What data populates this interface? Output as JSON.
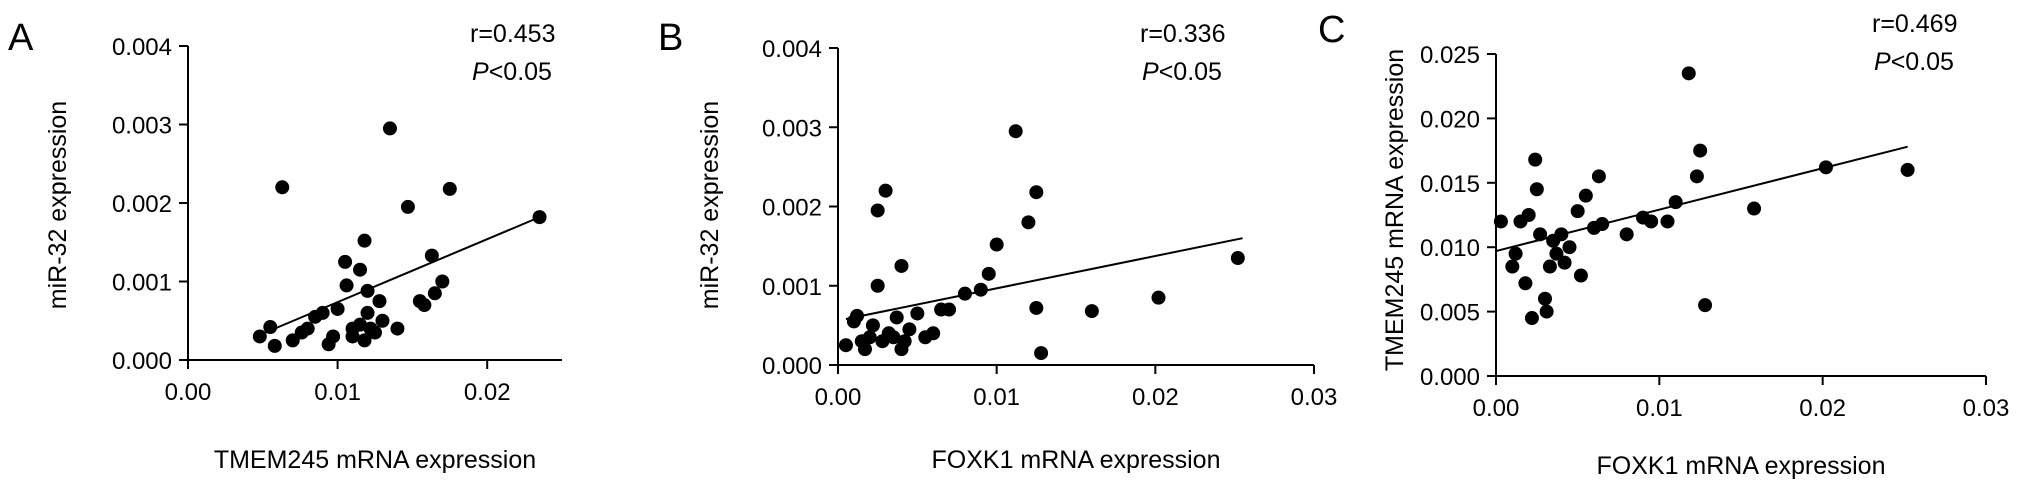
{
  "chart_data": [
    {
      "type": "scatter",
      "panel_label": "A",
      "xlabel": "TMEM245 mRNA expression",
      "ylabel": "miR-32 expression",
      "xlim": [
        0.0,
        0.025
      ],
      "ylim": [
        0.0,
        0.004
      ],
      "xticks": [
        0.0,
        0.01,
        0.02
      ],
      "xtick_labels": [
        "0.00",
        "0.01",
        "0.02"
      ],
      "yticks": [
        0.0,
        0.001,
        0.002,
        0.003,
        0.004
      ],
      "ytick_labels": [
        "0.000",
        "0.001",
        "0.002",
        "0.003",
        "0.004"
      ],
      "stats": {
        "r": "r=0.453",
        "p_letter": "P",
        "p_rest": "<0.05"
      },
      "fit_line": {
        "x": [
          0.0048,
          0.0235
        ],
        "y": [
          0.00032,
          0.00182
        ]
      },
      "points": [
        {
          "x": 0.0048,
          "y": 0.0003
        },
        {
          "x": 0.0055,
          "y": 0.00042
        },
        {
          "x": 0.0058,
          "y": 0.00018
        },
        {
          "x": 0.0063,
          "y": 0.0022
        },
        {
          "x": 0.007,
          "y": 0.00025
        },
        {
          "x": 0.0076,
          "y": 0.00035
        },
        {
          "x": 0.008,
          "y": 0.0004
        },
        {
          "x": 0.0085,
          "y": 0.00055
        },
        {
          "x": 0.009,
          "y": 0.0006
        },
        {
          "x": 0.0094,
          "y": 0.0002
        },
        {
          "x": 0.0097,
          "y": 0.0003
        },
        {
          "x": 0.01,
          "y": 0.00065
        },
        {
          "x": 0.0105,
          "y": 0.00125
        },
        {
          "x": 0.0106,
          "y": 0.00095
        },
        {
          "x": 0.011,
          "y": 0.0004
        },
        {
          "x": 0.011,
          "y": 0.0003
        },
        {
          "x": 0.0115,
          "y": 0.00115
        },
        {
          "x": 0.0115,
          "y": 0.00045
        },
        {
          "x": 0.0118,
          "y": 0.00025
        },
        {
          "x": 0.0118,
          "y": 0.00152
        },
        {
          "x": 0.012,
          "y": 0.00088
        },
        {
          "x": 0.012,
          "y": 0.0006
        },
        {
          "x": 0.0122,
          "y": 0.0004
        },
        {
          "x": 0.0125,
          "y": 0.00035
        },
        {
          "x": 0.0128,
          "y": 0.00075
        },
        {
          "x": 0.013,
          "y": 0.0005
        },
        {
          "x": 0.0135,
          "y": 0.00295
        },
        {
          "x": 0.014,
          "y": 0.0004
        },
        {
          "x": 0.0147,
          "y": 0.00195
        },
        {
          "x": 0.0155,
          "y": 0.00075
        },
        {
          "x": 0.0158,
          "y": 0.0007
        },
        {
          "x": 0.0163,
          "y": 0.00133
        },
        {
          "x": 0.0165,
          "y": 0.00085
        },
        {
          "x": 0.017,
          "y": 0.001
        },
        {
          "x": 0.0175,
          "y": 0.00218
        },
        {
          "x": 0.0235,
          "y": 0.00182
        }
      ]
    },
    {
      "type": "scatter",
      "panel_label": "B",
      "xlabel": "FOXK1 mRNA expression",
      "ylabel": "miR-32 expression",
      "xlim": [
        0.0,
        0.03
      ],
      "ylim": [
        0.0,
        0.004
      ],
      "xticks": [
        0.0,
        0.01,
        0.02,
        0.03
      ],
      "xtick_labels": [
        "0.00",
        "0.01",
        "0.02",
        "0.03"
      ],
      "yticks": [
        0.0,
        0.001,
        0.002,
        0.003,
        0.004
      ],
      "ytick_labels": [
        "0.000",
        "0.001",
        "0.002",
        "0.003",
        "0.004"
      ],
      "stats": {
        "r": "r=0.336",
        "p_letter": "P",
        "p_rest": "<0.05"
      },
      "fit_line": {
        "x": [
          0.0005,
          0.0255
        ],
        "y": [
          0.00058,
          0.0016
        ]
      },
      "points": [
        {
          "x": 0.0005,
          "y": 0.00025
        },
        {
          "x": 0.001,
          "y": 0.00055
        },
        {
          "x": 0.0012,
          "y": 0.00062
        },
        {
          "x": 0.0015,
          "y": 0.0003
        },
        {
          "x": 0.0017,
          "y": 0.0002
        },
        {
          "x": 0.002,
          "y": 0.00035
        },
        {
          "x": 0.0022,
          "y": 0.0005
        },
        {
          "x": 0.0025,
          "y": 0.001
        },
        {
          "x": 0.0025,
          "y": 0.00195
        },
        {
          "x": 0.0028,
          "y": 0.0003
        },
        {
          "x": 0.003,
          "y": 0.0022
        },
        {
          "x": 0.0032,
          "y": 0.0004
        },
        {
          "x": 0.0035,
          "y": 0.00035
        },
        {
          "x": 0.0037,
          "y": 0.0006
        },
        {
          "x": 0.004,
          "y": 0.00125
        },
        {
          "x": 0.004,
          "y": 0.0002
        },
        {
          "x": 0.0042,
          "y": 0.0003
        },
        {
          "x": 0.0045,
          "y": 0.00045
        },
        {
          "x": 0.005,
          "y": 0.00065
        },
        {
          "x": 0.0055,
          "y": 0.00035
        },
        {
          "x": 0.006,
          "y": 0.0004
        },
        {
          "x": 0.0065,
          "y": 0.0007
        },
        {
          "x": 0.007,
          "y": 0.0007
        },
        {
          "x": 0.008,
          "y": 0.0009
        },
        {
          "x": 0.009,
          "y": 0.00095
        },
        {
          "x": 0.0095,
          "y": 0.00115
        },
        {
          "x": 0.01,
          "y": 0.00152
        },
        {
          "x": 0.0112,
          "y": 0.00295
        },
        {
          "x": 0.012,
          "y": 0.0018
        },
        {
          "x": 0.0125,
          "y": 0.00218
        },
        {
          "x": 0.0125,
          "y": 0.00072
        },
        {
          "x": 0.0128,
          "y": 0.00015
        },
        {
          "x": 0.016,
          "y": 0.00068
        },
        {
          "x": 0.0202,
          "y": 0.00085
        },
        {
          "x": 0.0252,
          "y": 0.00135
        }
      ]
    },
    {
      "type": "scatter",
      "panel_label": "C",
      "xlabel": "FOXK1 mRNA expression",
      "ylabel": "TMEM245 mRNA expression",
      "xlim": [
        0.0,
        0.03
      ],
      "ylim": [
        0.0,
        0.025
      ],
      "xticks": [
        0.0,
        0.01,
        0.02,
        0.03
      ],
      "xtick_labels": [
        "0.00",
        "0.01",
        "0.02",
        "0.03"
      ],
      "yticks": [
        0.0,
        0.005,
        0.01,
        0.015,
        0.02,
        0.025
      ],
      "ytick_labels": [
        "0.000",
        "0.005",
        "0.010",
        "0.015",
        "0.020",
        "0.025"
      ],
      "stats": {
        "r": "r=0.469",
        "p_letter": "P",
        "p_rest": "<0.05"
      },
      "fit_line": {
        "x": [
          0.0,
          0.0252
        ],
        "y": [
          0.0097,
          0.0178
        ]
      },
      "points": [
        {
          "x": 0.0003,
          "y": 0.012
        },
        {
          "x": 0.001,
          "y": 0.0085
        },
        {
          "x": 0.0012,
          "y": 0.0095
        },
        {
          "x": 0.0015,
          "y": 0.012
        },
        {
          "x": 0.0018,
          "y": 0.0072
        },
        {
          "x": 0.002,
          "y": 0.0125
        },
        {
          "x": 0.0022,
          "y": 0.0045
        },
        {
          "x": 0.0024,
          "y": 0.0168
        },
        {
          "x": 0.0025,
          "y": 0.0145
        },
        {
          "x": 0.0027,
          "y": 0.011
        },
        {
          "x": 0.003,
          "y": 0.006
        },
        {
          "x": 0.0031,
          "y": 0.005
        },
        {
          "x": 0.0033,
          "y": 0.0085
        },
        {
          "x": 0.0035,
          "y": 0.0105
        },
        {
          "x": 0.0037,
          "y": 0.0095
        },
        {
          "x": 0.004,
          "y": 0.011
        },
        {
          "x": 0.0042,
          "y": 0.0088
        },
        {
          "x": 0.0045,
          "y": 0.01
        },
        {
          "x": 0.005,
          "y": 0.0128
        },
        {
          "x": 0.0052,
          "y": 0.0078
        },
        {
          "x": 0.0055,
          "y": 0.014
        },
        {
          "x": 0.006,
          "y": 0.0115
        },
        {
          "x": 0.0063,
          "y": 0.0155
        },
        {
          "x": 0.0065,
          "y": 0.0118
        },
        {
          "x": 0.008,
          "y": 0.011
        },
        {
          "x": 0.009,
          "y": 0.0123
        },
        {
          "x": 0.0095,
          "y": 0.012
        },
        {
          "x": 0.0105,
          "y": 0.012
        },
        {
          "x": 0.011,
          "y": 0.0135
        },
        {
          "x": 0.0118,
          "y": 0.0235
        },
        {
          "x": 0.0123,
          "y": 0.0155
        },
        {
          "x": 0.0125,
          "y": 0.0175
        },
        {
          "x": 0.0128,
          "y": 0.0055
        },
        {
          "x": 0.0158,
          "y": 0.013
        },
        {
          "x": 0.0202,
          "y": 0.0162
        },
        {
          "x": 0.0252,
          "y": 0.016
        }
      ]
    }
  ]
}
